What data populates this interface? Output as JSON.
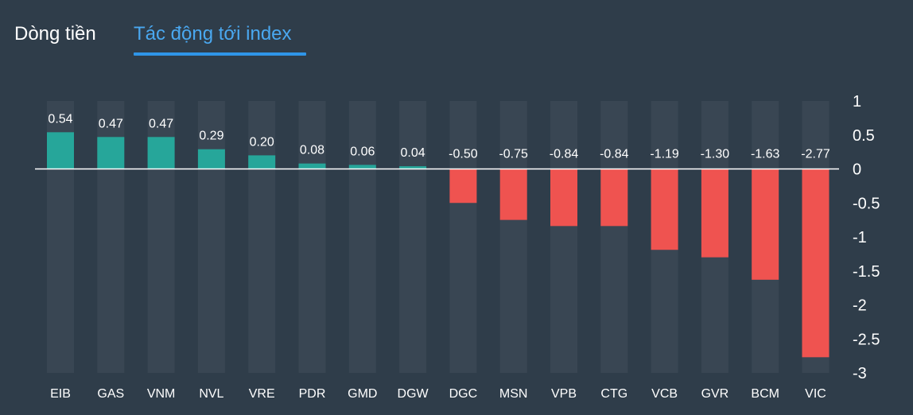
{
  "tabs": {
    "flow_label": "Dòng tiền",
    "impact_label": "Tác động tới index",
    "active": "impact"
  },
  "colors": {
    "background": "#2f3d4a",
    "positive": "#26a69a",
    "negative": "#ef5350",
    "column_band": "#394653",
    "active_tab": "#4aa8f0",
    "active_underline": "#2f95e8"
  },
  "chart_data": {
    "type": "bar",
    "categories": [
      "EIB",
      "GAS",
      "VNM",
      "NVL",
      "VRE",
      "PDR",
      "GMD",
      "DGW",
      "DGC",
      "MSN",
      "VPB",
      "CTG",
      "VCB",
      "GVR",
      "BCM",
      "VIC"
    ],
    "values": [
      0.54,
      0.47,
      0.47,
      0.29,
      0.2,
      0.08,
      0.06,
      0.04,
      -0.5,
      -0.75,
      -0.84,
      -0.84,
      -1.19,
      -1.3,
      -1.63,
      -2.77
    ],
    "value_labels": [
      "0.54",
      "0.47",
      "0.47",
      "0.29",
      "0.20",
      "0.08",
      "0.06",
      "0.04",
      "-0.50",
      "-0.75",
      "-0.84",
      "-0.84",
      "-1.19",
      "-1.30",
      "-1.63",
      "-2.77"
    ],
    "ylim": [
      -3,
      1
    ],
    "yticks": [
      1,
      0.5,
      0,
      -0.5,
      -1,
      -1.5,
      -2,
      -2.5,
      -3
    ],
    "ytick_labels": [
      "1",
      "0.5",
      "0",
      "-0.5",
      "-1",
      "-1.5",
      "-2",
      "-2.5",
      "-3"
    ],
    "y_axis_side": "right",
    "grid": false,
    "legend": "none",
    "title": "",
    "xlabel": "",
    "ylabel": ""
  }
}
